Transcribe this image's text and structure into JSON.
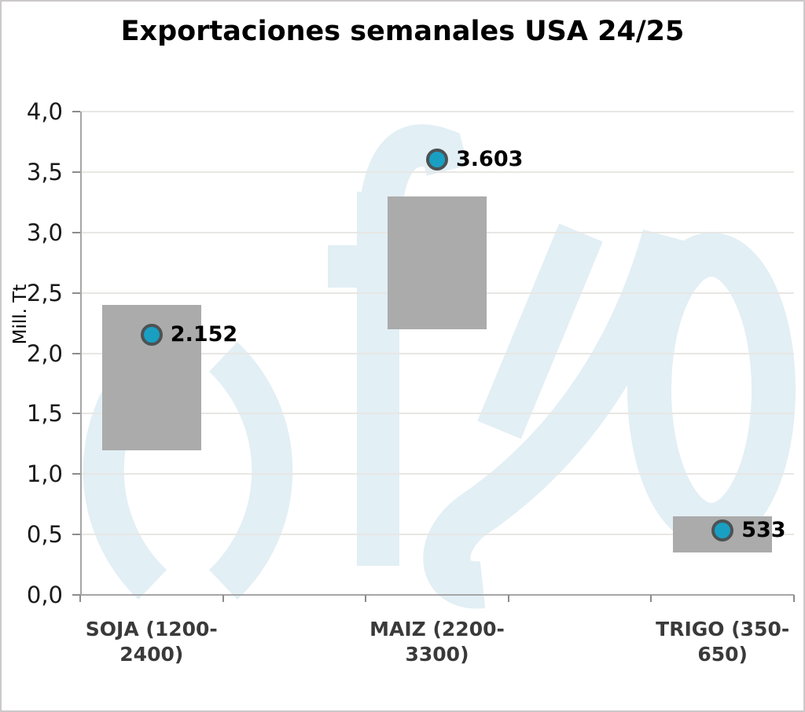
{
  "chart_data": {
    "type": "bar",
    "subtype": "floating-range-bars-with-point-markers",
    "title": "Exportaciones semanales USA 24/25",
    "ylabel": "Mill. Tt",
    "ylim": [
      0,
      4
    ],
    "ytick_step": 0.5,
    "ytick_labels": [
      "0,0",
      "0,5",
      "1,0",
      "1,5",
      "2,0",
      "2,5",
      "3,0",
      "3,5",
      "4,0"
    ],
    "grid": true,
    "legend": false,
    "watermark_text": "()fyo",
    "categories": [
      {
        "id": "soja",
        "label": "SOJA (1200-2400)",
        "label_lines": [
          "SOJA (1200-",
          "2400)"
        ],
        "range_low": 1.2,
        "range_high": 2.4,
        "marker_value": 2.152,
        "marker_label": "2.152"
      },
      {
        "id": "maiz",
        "label": "MAIZ (2200-3300)",
        "label_lines": [
          "MAIZ (2200-",
          "3300)"
        ],
        "range_low": 2.2,
        "range_high": 3.3,
        "marker_value": 3.603,
        "marker_label": "3.603"
      },
      {
        "id": "trigo",
        "label": "TRIGO (350-650)",
        "label_lines": [
          "TRIGO (350-",
          "650)"
        ],
        "range_low": 0.35,
        "range_high": 0.65,
        "marker_value": 0.533,
        "marker_label": "533"
      }
    ],
    "colors": {
      "bar": "#ABABAB",
      "marker_fill": "#199FC2",
      "marker_border": "#4D5254",
      "gridline": "#E8E7E4",
      "axis": "#A6A6A6",
      "tick": "#8C8C8C",
      "watermark": "#E2EFF5",
      "title_text": "#000000",
      "ytick_text": "#1A1A1A",
      "category_text": "#3A3A3A",
      "marker_label_text": "#000000"
    }
  }
}
